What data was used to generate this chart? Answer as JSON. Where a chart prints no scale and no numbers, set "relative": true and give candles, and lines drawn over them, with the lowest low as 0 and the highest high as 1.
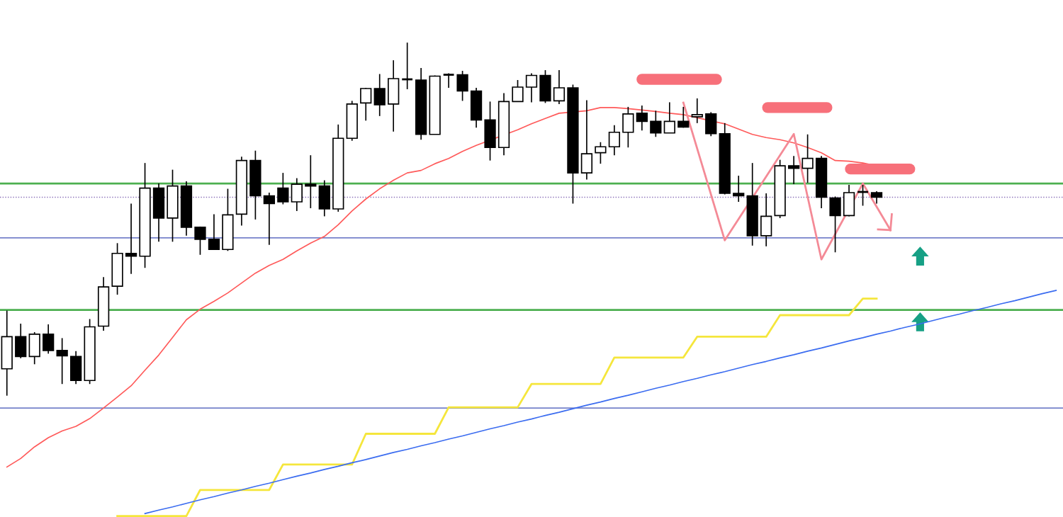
{
  "chart_data": {
    "type": "candlestick",
    "relative": true,
    "categories": [
      null,
      null,
      null,
      null,
      null,
      null,
      null,
      null,
      null,
      null,
      null,
      null,
      null,
      null,
      null,
      null,
      null,
      null,
      null,
      null,
      null,
      null,
      null,
      null,
      null,
      null,
      null,
      null,
      null,
      null,
      null,
      null,
      null,
      null,
      null,
      null,
      null,
      null,
      null,
      null,
      null,
      null,
      null,
      null,
      null,
      null,
      null,
      null,
      null,
      null,
      null,
      null,
      null,
      null,
      null,
      null,
      null,
      null,
      null,
      null,
      null,
      null,
      null,
      null,
      null,
      null,
      null,
      null,
      null,
      null,
      null,
      null,
      null,
      null,
      null,
      null,
      null
    ],
    "ohlc": [
      [
        0.076,
        0.241,
        0.0,
        0.167
      ],
      [
        0.167,
        0.204,
        0.106,
        0.111
      ],
      [
        0.111,
        0.18,
        0.089,
        0.174
      ],
      [
        0.174,
        0.202,
        0.119,
        0.128
      ],
      [
        0.128,
        0.163,
        0.033,
        0.113
      ],
      [
        0.111,
        0.126,
        0.033,
        0.043
      ],
      [
        0.043,
        0.217,
        0.033,
        0.195
      ],
      [
        0.197,
        0.336,
        0.184,
        0.308
      ],
      [
        0.31,
        0.432,
        0.286,
        0.403
      ],
      [
        0.403,
        0.544,
        0.345,
        0.395
      ],
      [
        0.395,
        0.659,
        0.362,
        0.588
      ],
      [
        0.588,
        0.601,
        0.436,
        0.503
      ],
      [
        0.503,
        0.64,
        0.436,
        0.594
      ],
      [
        0.594,
        0.607,
        0.453,
        0.477
      ],
      [
        0.477,
        0.479,
        0.399,
        0.443
      ],
      [
        0.443,
        0.514,
        0.414,
        0.414
      ],
      [
        0.414,
        0.586,
        0.41,
        0.512
      ],
      [
        0.514,
        0.677,
        0.482,
        0.666
      ],
      [
        0.666,
        0.694,
        0.499,
        0.566
      ],
      [
        0.566,
        0.575,
        0.427,
        0.544
      ],
      [
        0.588,
        0.631,
        0.542,
        0.549
      ],
      [
        0.549,
        0.616,
        0.523,
        0.599
      ],
      [
        0.599,
        0.681,
        0.531,
        0.594
      ],
      [
        0.594,
        0.61,
        0.508,
        0.529
      ],
      [
        0.529,
        0.768,
        0.521,
        0.729
      ],
      [
        0.729,
        0.835,
        0.722,
        0.826
      ],
      [
        0.829,
        0.872,
        0.779,
        0.87
      ],
      [
        0.87,
        0.911,
        0.792,
        0.824
      ],
      [
        0.826,
        0.95,
        0.748,
        0.898
      ],
      [
        0.896,
        1.0,
        0.868,
        0.896
      ],
      [
        0.894,
        0.928,
        0.725,
        0.74
      ],
      [
        0.74,
        0.907,
        0.74,
        0.905
      ],
      [
        0.909,
        0.913,
        0.872,
        0.907
      ],
      [
        0.909,
        0.92,
        0.835,
        0.863
      ],
      [
        0.863,
        0.872,
        0.759,
        0.781
      ],
      [
        0.781,
        0.833,
        0.666,
        0.703
      ],
      [
        0.703,
        0.857,
        0.681,
        0.833
      ],
      [
        0.833,
        0.894,
        0.833,
        0.874
      ],
      [
        0.874,
        0.913,
        0.831,
        0.907
      ],
      [
        0.907,
        0.922,
        0.829,
        0.835
      ],
      [
        0.835,
        0.922,
        0.826,
        0.872
      ],
      [
        0.872,
        0.881,
        0.544,
        0.631
      ],
      [
        0.631,
        0.837,
        0.612,
        0.685
      ],
      [
        0.688,
        0.718,
        0.657,
        0.705
      ],
      [
        0.705,
        0.766,
        0.681,
        0.746
      ],
      [
        0.746,
        0.818,
        0.703,
        0.798
      ],
      [
        0.8,
        0.822,
        0.751,
        0.777
      ],
      [
        0.777,
        0.807,
        0.733,
        0.744
      ],
      [
        0.744,
        0.831,
        0.744,
        0.777
      ],
      [
        0.777,
        0.818,
        0.759,
        0.761
      ],
      [
        0.79,
        0.842,
        0.772,
        0.796
      ],
      [
        0.798,
        0.803,
        0.735,
        0.742
      ],
      [
        0.742,
        0.772,
        0.57,
        0.573
      ],
      [
        0.573,
        0.623,
        0.549,
        0.566
      ],
      [
        0.566,
        0.659,
        0.425,
        0.453
      ],
      [
        0.453,
        0.573,
        0.423,
        0.508
      ],
      [
        0.51,
        0.668,
        0.503,
        0.651
      ],
      [
        0.651,
        0.679,
        0.599,
        0.644
      ],
      [
        0.644,
        0.74,
        0.603,
        0.672
      ],
      [
        0.672,
        0.679,
        0.531,
        0.562
      ],
      [
        0.56,
        0.564,
        0.406,
        0.51
      ],
      [
        0.51,
        0.597,
        0.508,
        0.575
      ],
      [
        0.577,
        0.597,
        0.538,
        0.577
      ],
      [
        0.575,
        0.579,
        0.544,
        0.562
      ],
      null,
      null,
      null,
      null,
      null,
      null,
      null,
      null,
      null,
      null,
      null,
      null,
      null
    ],
    "series": [
      {
        "type": "line",
        "color": "#ff5a5a",
        "values": [
          -0.202,
          -0.178,
          -0.145,
          -0.119,
          -0.1,
          -0.087,
          -0.065,
          -0.035,
          -0.004,
          0.028,
          0.072,
          0.115,
          0.165,
          0.215,
          0.245,
          0.267,
          0.291,
          0.319,
          0.347,
          0.369,
          0.386,
          0.41,
          0.432,
          0.451,
          0.484,
          0.523,
          0.557,
          0.586,
          0.61,
          0.631,
          0.638,
          0.657,
          0.672,
          0.692,
          0.709,
          null,
          null,
          0.753,
          0.77,
          0.785,
          0.8,
          null,
          0.807,
          0.816,
          0.816,
          0.813,
          0.809,
          0.805,
          0.8,
          0.796,
          null,
          null,
          0.77,
          0.755,
          0.74,
          0.731,
          0.725,
          0.716,
          0.703,
          0.688,
          0.666,
          0.664,
          0.659,
          0.651,
          null,
          null,
          null,
          null,
          null,
          null,
          null,
          null,
          null,
          null,
          null,
          null,
          null
        ]
      },
      {
        "type": "line",
        "color": "#f5e63c",
        "values": [
          null,
          null,
          null,
          null,
          null,
          null,
          null,
          null,
          -0.341,
          -0.341,
          -0.341,
          -0.341,
          -0.341,
          -0.341,
          -0.267,
          -0.267,
          -0.267,
          -0.267,
          -0.267,
          -0.267,
          -0.195,
          -0.195,
          -0.195,
          -0.195,
          -0.195,
          -0.195,
          -0.108,
          -0.108,
          -0.108,
          -0.108,
          -0.108,
          -0.108,
          -0.033,
          -0.033,
          -0.033,
          -0.033,
          -0.033,
          -0.033,
          0.033,
          0.033,
          0.033,
          0.033,
          0.033,
          0.033,
          0.108,
          0.108,
          0.108,
          0.108,
          0.108,
          0.108,
          0.167,
          0.167,
          0.167,
          0.167,
          0.167,
          0.167,
          0.228,
          0.228,
          0.228,
          0.228,
          0.228,
          0.228,
          0.275,
          0.275,
          null,
          null,
          null,
          null,
          null,
          null,
          null,
          null,
          null,
          null,
          null,
          null,
          null
        ]
      },
      {
        "type": "line",
        "color": "#3b6cf0",
        "values": [
          null,
          null,
          null,
          null,
          null,
          null,
          null,
          null,
          null,
          null,
          -0.334,
          -0.324,
          -0.315,
          -0.305,
          -0.295,
          -0.286,
          -0.276,
          -0.267,
          -0.257,
          -0.248,
          -0.238,
          -0.228,
          -0.219,
          -0.209,
          -0.2,
          -0.19,
          -0.181,
          -0.171,
          -0.161,
          -0.152,
          -0.142,
          -0.133,
          -0.123,
          -0.114,
          -0.104,
          -0.094,
          -0.085,
          -0.075,
          -0.066,
          -0.056,
          -0.047,
          -0.037,
          -0.027,
          -0.018,
          -0.008,
          0.001,
          0.011,
          0.021,
          0.03,
          0.04,
          0.049,
          0.059,
          0.068,
          0.078,
          0.088,
          0.097,
          0.107,
          0.116,
          0.126,
          0.135,
          0.145,
          0.155,
          0.164,
          0.174,
          0.183,
          0.193,
          0.202,
          0.212,
          0.222,
          0.231,
          0.241,
          0.25,
          0.26,
          0.269,
          0.279,
          0.289,
          0.298
        ]
      },
      {
        "type": "line",
        "color": "#f48a96",
        "values": [
          null,
          null,
          null,
          null,
          null,
          null,
          null,
          null,
          null,
          null,
          null,
          null,
          null,
          null,
          null,
          null,
          null,
          null,
          null,
          null,
          null,
          null,
          null,
          null,
          null,
          null,
          null,
          null,
          null,
          null,
          null,
          null,
          null,
          null,
          null,
          null,
          null,
          null,
          null,
          null,
          null,
          null,
          null,
          null,
          null,
          null,
          null,
          null,
          null,
          0.83,
          null,
          null,
          0.44,
          null,
          null,
          null,
          null,
          0.741,
          null,
          0.386,
          null,
          null,
          0.601,
          null,
          0.469,
          null,
          null,
          null,
          null,
          null,
          null,
          null,
          null,
          null,
          null,
          null,
          null
        ]
      }
    ],
    "ref_lines": [
      {
        "axis": "y",
        "value": 0.601,
        "color": "#4caf50",
        "line_style": "solid"
      },
      {
        "axis": "y",
        "value": 0.243,
        "color": "#4caf50",
        "line_style": "solid"
      },
      {
        "axis": "y",
        "value": 0.447,
        "color": "#3f51b5",
        "line_style": "solid"
      },
      {
        "axis": "y",
        "value": -0.035,
        "color": "#3f51b5",
        "line_style": "solid"
      },
      {
        "axis": "y",
        "value": 0.562,
        "color": "#8a6fb8",
        "line_style": "dotted"
      }
    ]
  }
}
